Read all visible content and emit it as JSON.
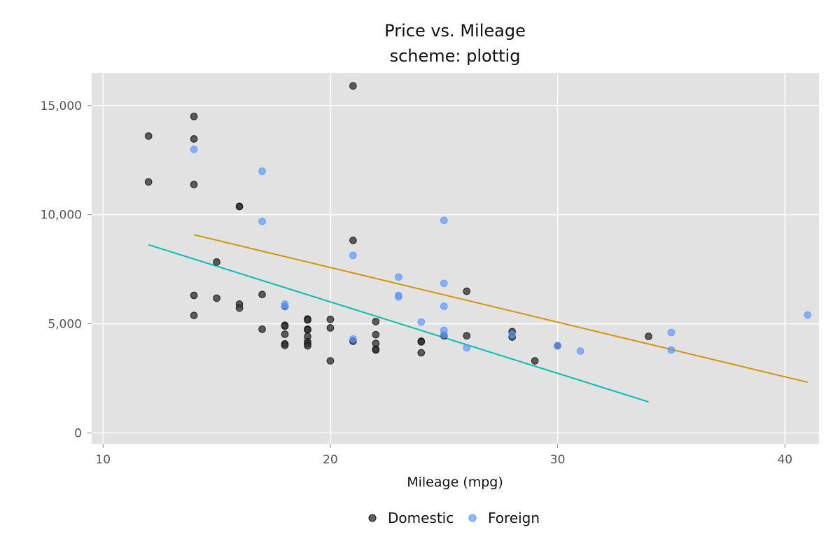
{
  "chart_data": {
    "type": "scatter",
    "title": "Price vs. Mileage",
    "subtitle": "scheme: plottig",
    "xlabel": "Mileage (mpg)",
    "ylabel": "",
    "xlim": [
      9.5,
      41.5
    ],
    "ylim": [
      -500,
      16500
    ],
    "x_ticks": [
      10,
      20,
      30,
      40
    ],
    "y_ticks": [
      0,
      5000,
      10000,
      15000
    ],
    "x_tick_labels": [
      "10",
      "20",
      "30",
      "40"
    ],
    "y_tick_labels": [
      "0",
      "5,000",
      "10,000",
      "15,000"
    ],
    "grid": true,
    "background": "#e2e2e2",
    "legend_position": "bottom",
    "series": [
      {
        "name": "Domestic",
        "color": "#333333",
        "points": [
          [
            12,
            13600
          ],
          [
            12,
            11500
          ],
          [
            14,
            14500
          ],
          [
            14,
            13470
          ],
          [
            14,
            11380
          ],
          [
            14,
            6300
          ],
          [
            14,
            5380
          ],
          [
            15,
            7830
          ],
          [
            15,
            6170
          ],
          [
            16,
            10380
          ],
          [
            16,
            10370
          ],
          [
            16,
            5900
          ],
          [
            16,
            5720
          ],
          [
            17,
            6340
          ],
          [
            17,
            4750
          ],
          [
            18,
            4930
          ],
          [
            18,
            4890
          ],
          [
            18,
            4520
          ],
          [
            18,
            4080
          ],
          [
            18,
            4010
          ],
          [
            18,
            5790
          ],
          [
            19,
            5220
          ],
          [
            19,
            5170
          ],
          [
            19,
            4750
          ],
          [
            19,
            4720
          ],
          [
            19,
            4420
          ],
          [
            19,
            4180
          ],
          [
            19,
            4080
          ],
          [
            19,
            3990
          ],
          [
            20,
            5200
          ],
          [
            20,
            4810
          ],
          [
            20,
            3300
          ],
          [
            21,
            15900
          ],
          [
            21,
            8820
          ],
          [
            21,
            4200
          ],
          [
            22,
            5100
          ],
          [
            22,
            4500
          ],
          [
            22,
            4100
          ],
          [
            22,
            3830
          ],
          [
            22,
            3800
          ],
          [
            24,
            4200
          ],
          [
            24,
            4170
          ],
          [
            24,
            3670
          ],
          [
            25,
            4450
          ],
          [
            26,
            6490
          ],
          [
            26,
            4450
          ],
          [
            28,
            4640
          ],
          [
            28,
            4390
          ],
          [
            29,
            3300
          ],
          [
            30,
            3990
          ],
          [
            34,
            4420
          ]
        ]
      },
      {
        "name": "Foreign",
        "color": "#5b96ff",
        "points": [
          [
            14,
            12990
          ],
          [
            17,
            11990
          ],
          [
            17,
            9690
          ],
          [
            18,
            5900
          ],
          [
            18,
            5800
          ],
          [
            21,
            8130
          ],
          [
            21,
            4300
          ],
          [
            23,
            7140
          ],
          [
            23,
            6300
          ],
          [
            23,
            6230
          ],
          [
            24,
            5080
          ],
          [
            25,
            9740
          ],
          [
            25,
            6850
          ],
          [
            25,
            5800
          ],
          [
            25,
            4700
          ],
          [
            25,
            4500
          ],
          [
            26,
            3900
          ],
          [
            28,
            4500
          ],
          [
            30,
            4000
          ],
          [
            31,
            3750
          ],
          [
            35,
            4600
          ],
          [
            35,
            3800
          ],
          [
            41,
            5400
          ]
        ]
      }
    ],
    "fit_lines": [
      {
        "color": "#00c0b0",
        "points": [
          [
            12,
            8620
          ],
          [
            34,
            1420
          ]
        ]
      },
      {
        "color": "#d4940a",
        "points": [
          [
            14,
            9080
          ],
          [
            41,
            2320
          ]
        ]
      }
    ]
  }
}
